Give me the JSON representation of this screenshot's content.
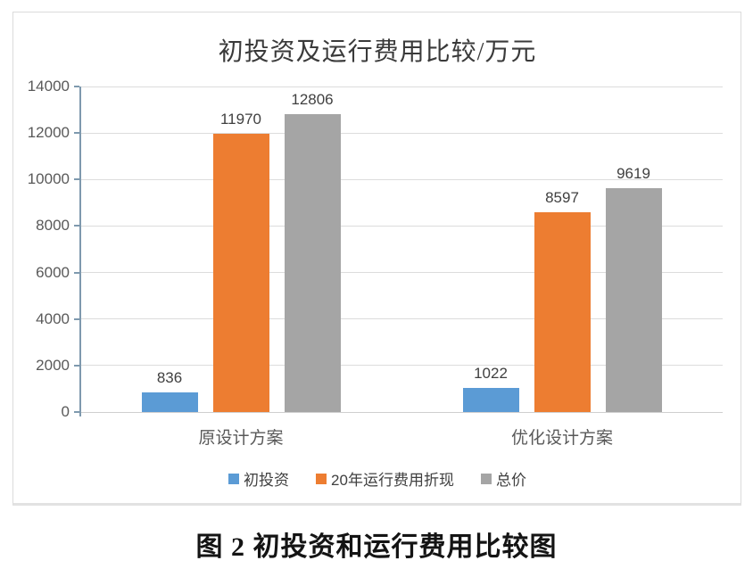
{
  "chart_data": {
    "type": "bar",
    "title": "初投资及运行费用比较/万元",
    "categories": [
      "原设计方案",
      "优化设计方案"
    ],
    "series": [
      {
        "name": "初投资",
        "color": "#5B9BD5",
        "values": [
          836,
          1022
        ]
      },
      {
        "name": "20年运行费用折现",
        "color": "#ED7D31",
        "values": [
          11970,
          8597
        ]
      },
      {
        "name": "总价",
        "color": "#A5A5A5",
        "values": [
          12806,
          9619
        ]
      }
    ],
    "ylim": [
      0,
      14000
    ],
    "yticks": [
      0,
      2000,
      4000,
      6000,
      8000,
      10000,
      12000,
      14000
    ],
    "grid": true,
    "data_labels": true,
    "legend_position": "bottom"
  },
  "caption": "图 2  初投资和运行费用比较图"
}
